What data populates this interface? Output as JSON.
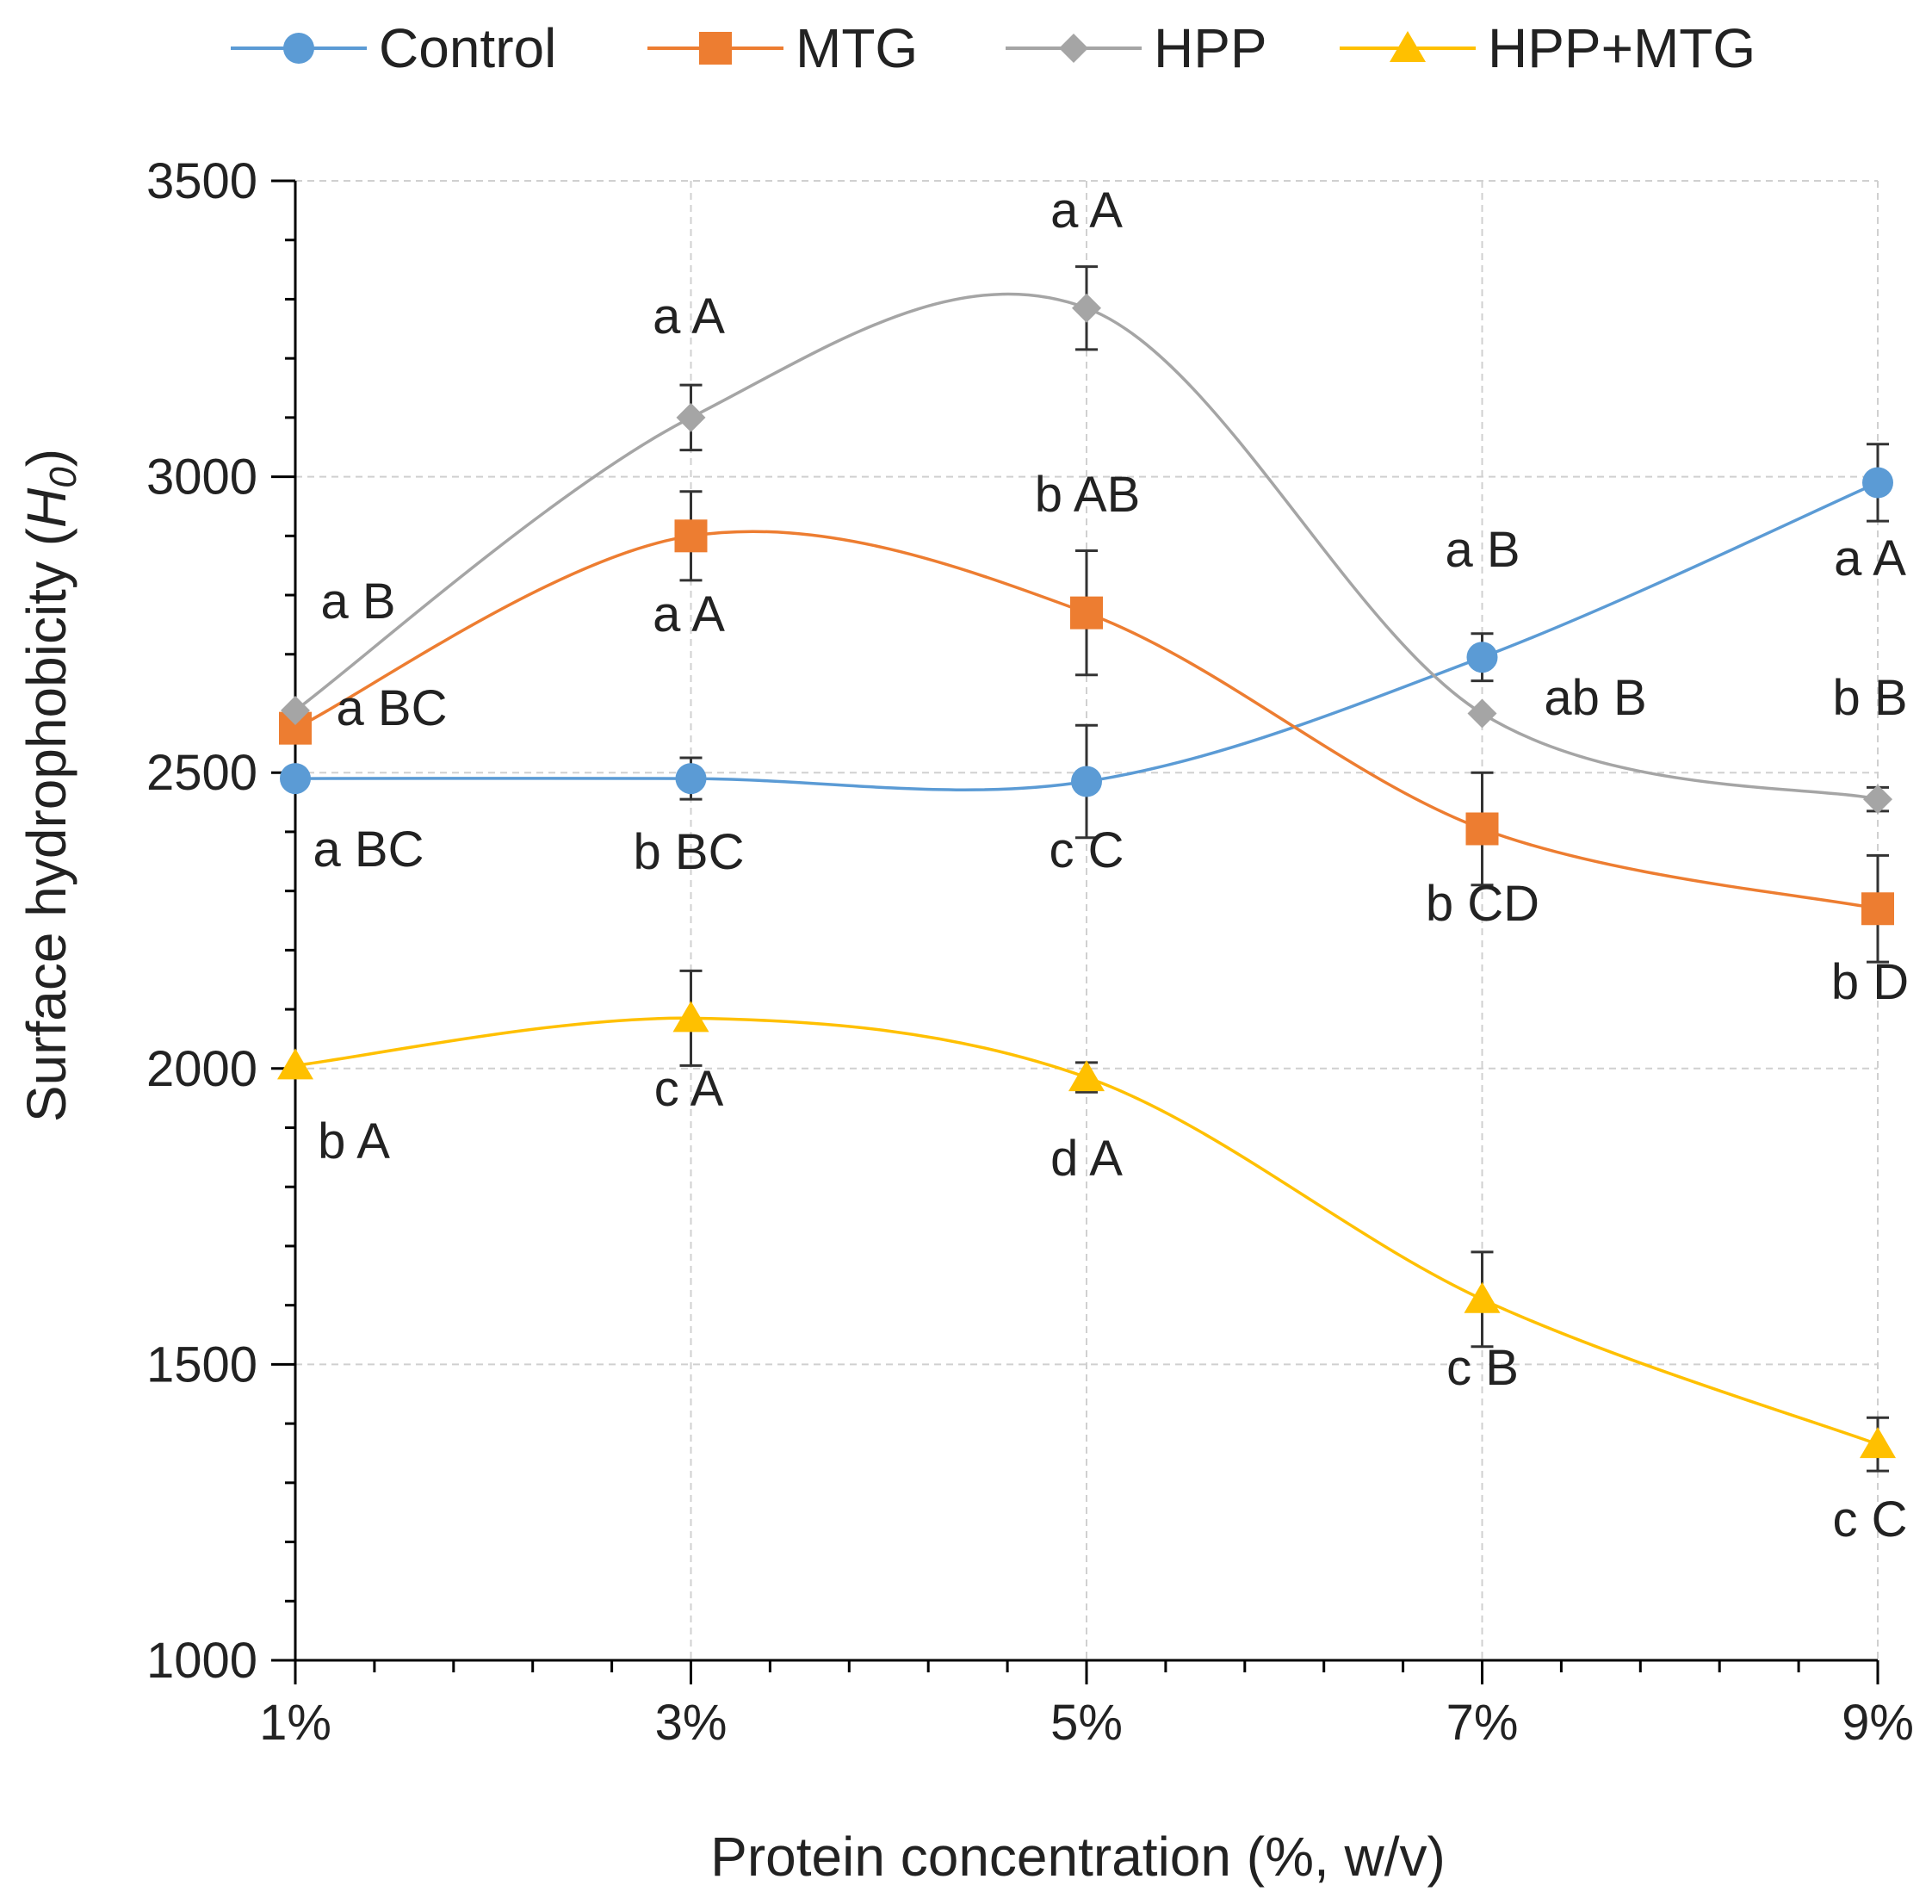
{
  "chart_data": {
    "type": "line",
    "title": "",
    "xlabel": "Protein concentration (%, w/v)",
    "ylabel": "Surface hydrophobicity (",
    "ylabel_sym": "H",
    "ylabel_sub": "0",
    "ylabel_close": ")",
    "categories": [
      "1%",
      "3%",
      "5%",
      "7%",
      "9%"
    ],
    "ylim": [
      1000,
      3500
    ],
    "yticks": [
      1000,
      1500,
      2000,
      2500,
      3000,
      3500
    ],
    "ytick_labels": [
      "1000",
      "1500",
      "2000",
      "2500",
      "3000",
      "3500"
    ],
    "grid": true,
    "legend_position": "top",
    "series": [
      {
        "name": "Control",
        "color": "#5B9BD5",
        "marker": "circle",
        "values": [
          2490,
          2490,
          2485,
          2695,
          2990
        ],
        "errors": [
          0,
          35,
          95,
          40,
          65
        ],
        "labels": [
          "a BC",
          "b BC",
          "c C",
          "a B",
          "a A"
        ]
      },
      {
        "name": "MTG",
        "color": "#ED7D31",
        "marker": "square",
        "values": [
          2575,
          2900,
          2770,
          2405,
          2270
        ],
        "errors": [
          0,
          75,
          105,
          95,
          90
        ],
        "labels": [
          "a BC",
          "a A",
          "b AB",
          "b CD",
          "b D"
        ]
      },
      {
        "name": "HPP",
        "color": "#A5A5A5",
        "marker": "diamond",
        "values": [
          2605,
          3100,
          3285,
          2600,
          2455
        ],
        "errors": [
          0,
          55,
          70,
          0,
          20
        ],
        "labels": [
          "a B",
          "a A",
          "a A",
          "ab B",
          "b B"
        ]
      },
      {
        "name": "HPP+MTG",
        "color": "#FFC000",
        "marker": "triangle",
        "values": [
          2005,
          2085,
          1985,
          1610,
          1365
        ],
        "errors": [
          0,
          80,
          25,
          80,
          45
        ],
        "labels": [
          "b A",
          "c A",
          "d A",
          "c B",
          "c C"
        ]
      }
    ]
  }
}
